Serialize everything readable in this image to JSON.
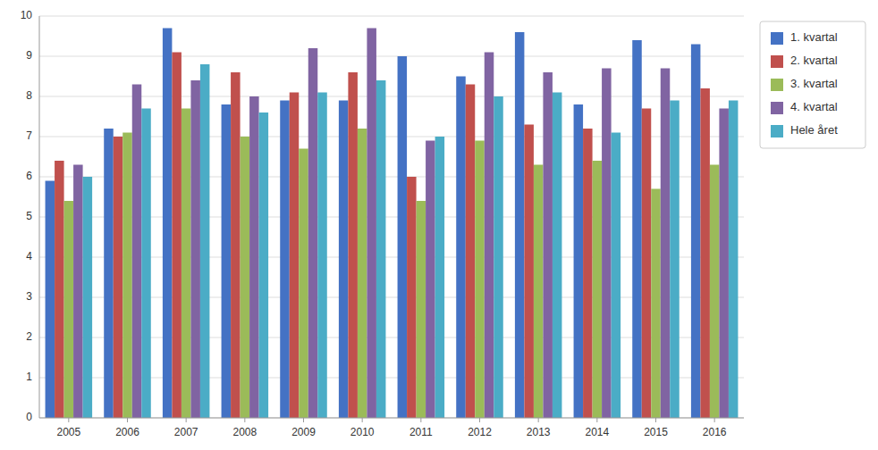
{
  "chart_data": {
    "type": "bar",
    "categories": [
      "2005",
      "2006",
      "2007",
      "2008",
      "2009",
      "2010",
      "2011",
      "2012",
      "2013",
      "2014",
      "2015",
      "2016"
    ],
    "series": [
      {
        "name": "1. kvartal",
        "color": "#4472C4",
        "values": [
          5.9,
          7.2,
          9.7,
          7.8,
          7.9,
          7.9,
          9.0,
          8.5,
          9.6,
          7.8,
          9.4,
          9.3
        ]
      },
      {
        "name": "2. kvartal",
        "color": "#C0504D",
        "values": [
          6.4,
          7.0,
          9.1,
          8.6,
          8.1,
          8.6,
          6.0,
          8.3,
          7.3,
          7.2,
          7.7,
          8.2
        ]
      },
      {
        "name": "3. kvartal",
        "color": "#9BBB59",
        "values": [
          5.4,
          7.1,
          7.7,
          7.0,
          6.7,
          7.2,
          5.4,
          6.9,
          6.3,
          6.4,
          5.7,
          6.3
        ]
      },
      {
        "name": "4. kvartal",
        "color": "#8064A2",
        "values": [
          6.3,
          8.3,
          8.4,
          8.0,
          9.2,
          9.7,
          6.9,
          9.1,
          8.6,
          8.7,
          8.7,
          7.7
        ]
      },
      {
        "name": "Hele året",
        "color": "#4BACC6",
        "values": [
          6.0,
          7.7,
          8.8,
          7.6,
          8.1,
          8.4,
          7.0,
          8.0,
          8.1,
          7.1,
          7.9,
          7.9
        ]
      }
    ],
    "ylim": [
      0,
      10
    ],
    "yticks": [
      0,
      1,
      2,
      3,
      4,
      5,
      6,
      7,
      8,
      9,
      10
    ],
    "grid": true,
    "legend": "right"
  }
}
